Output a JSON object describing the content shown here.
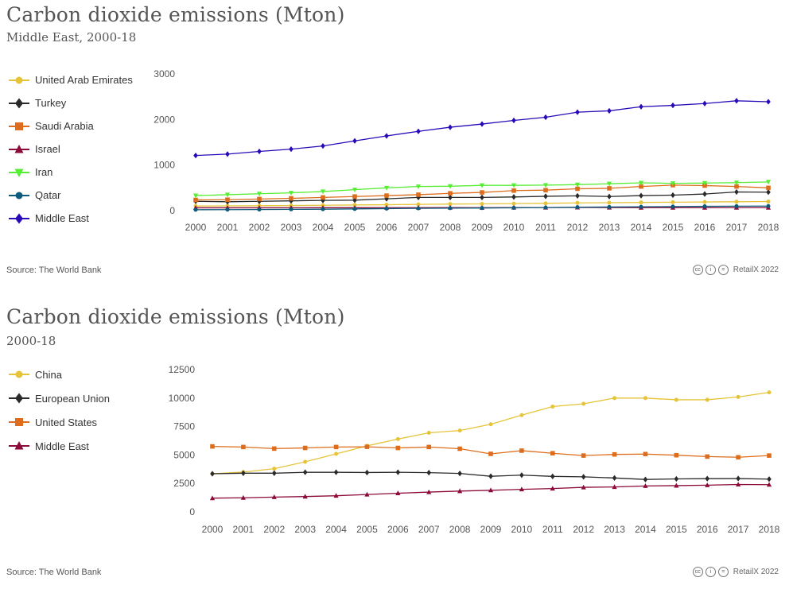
{
  "charts": [
    {
      "title": "Carbon dioxide emissions (Mton)",
      "subtitle": "Middle East, 2000-18",
      "source": "Source: The World Bank",
      "credit": "RetailX 2022",
      "credit_icons": [
        "cc-icon",
        "by-icon",
        "nd-icon"
      ],
      "legend": [
        {
          "name": "United Arab Emirates",
          "color": "#e6c43a",
          "marker": "circle"
        },
        {
          "name": "Turkey",
          "color": "#2a2a2a",
          "marker": "diamond"
        },
        {
          "name": "Saudi Arabia",
          "color": "#dd6d1c",
          "marker": "square"
        },
        {
          "name": "Israel",
          "color": "#8b0a3a",
          "marker": "triangle-up"
        },
        {
          "name": "Iran",
          "color": "#55ee33",
          "marker": "triangle-down"
        },
        {
          "name": "Qatar",
          "color": "#0e5a7a",
          "marker": "circle"
        },
        {
          "name": "Middle East",
          "color": "#2a0ab8",
          "marker": "diamond"
        }
      ]
    },
    {
      "title": "Carbon dioxide emissions (Mton)",
      "subtitle": "2000-18",
      "source": "Source: The World Bank",
      "credit": "RetailX 2022",
      "credit_icons": [
        "cc-icon",
        "by-icon",
        "nd-icon"
      ],
      "legend": [
        {
          "name": "China",
          "color": "#e6c43a",
          "marker": "circle"
        },
        {
          "name": "European Union",
          "color": "#2a2a2a",
          "marker": "diamond"
        },
        {
          "name": "United States",
          "color": "#dd6d1c",
          "marker": "square"
        },
        {
          "name": "Middle East",
          "color": "#8b0a3a",
          "marker": "triangle-up"
        }
      ]
    }
  ],
  "chart_data": [
    {
      "type": "line",
      "title": "Carbon dioxide emissions (Mton)",
      "subtitle": "Middle East, 2000-18",
      "xlabel": "",
      "ylabel": "",
      "ylim": [
        0,
        3000
      ],
      "yticks": [
        0,
        1000,
        2000,
        3000
      ],
      "x": [
        "2000",
        "2001",
        "2002",
        "2003",
        "2004",
        "2005",
        "2006",
        "2007",
        "2008",
        "2009",
        "2010",
        "2011",
        "2012",
        "2013",
        "2014",
        "2015",
        "2016",
        "2017",
        "2018"
      ],
      "series": [
        {
          "name": "United Arab Emirates",
          "color": "#e6c43a",
          "marker": "circle",
          "values": [
            100,
            105,
            108,
            112,
            118,
            125,
            130,
            138,
            145,
            148,
            155,
            160,
            170,
            175,
            180,
            185,
            190,
            195,
            200
          ]
        },
        {
          "name": "Turkey",
          "color": "#2a2a2a",
          "marker": "diamond",
          "values": [
            205,
            195,
            205,
            215,
            225,
            230,
            260,
            290,
            290,
            290,
            300,
            315,
            325,
            310,
            330,
            340,
            365,
            410,
            405
          ]
        },
        {
          "name": "Saudi Arabia",
          "color": "#dd6d1c",
          "marker": "square",
          "values": [
            235,
            240,
            255,
            270,
            290,
            310,
            330,
            350,
            380,
            400,
            440,
            450,
            480,
            490,
            530,
            560,
            550,
            530,
            500
          ]
        },
        {
          "name": "Israel",
          "color": "#8b0a3a",
          "marker": "triangle-up",
          "values": [
            62,
            62,
            62,
            63,
            64,
            64,
            65,
            66,
            67,
            64,
            67,
            68,
            70,
            68,
            65,
            65,
            66,
            66,
            65
          ]
        },
        {
          "name": "Iran",
          "color": "#55ee33",
          "marker": "triangle-down",
          "values": [
            330,
            350,
            370,
            390,
            420,
            460,
            500,
            530,
            535,
            555,
            555,
            560,
            570,
            590,
            610,
            600,
            605,
            615,
            630
          ]
        },
        {
          "name": "Qatar",
          "color": "#0e5a7a",
          "marker": "circle",
          "values": [
            20,
            22,
            24,
            28,
            32,
            38,
            45,
            50,
            55,
            58,
            62,
            68,
            75,
            80,
            85,
            90,
            95,
            98,
            100
          ]
        },
        {
          "name": "Middle East",
          "color": "#2a0ab8",
          "marker": "diamond",
          "values": [
            1210,
            1240,
            1300,
            1350,
            1420,
            1530,
            1640,
            1740,
            1830,
            1900,
            1980,
            2050,
            2160,
            2190,
            2280,
            2310,
            2350,
            2410,
            2390
          ]
        }
      ]
    },
    {
      "type": "line",
      "title": "Carbon dioxide emissions (Mton)",
      "subtitle": "2000-18",
      "xlabel": "",
      "ylabel": "",
      "ylim": [
        0,
        12500
      ],
      "yticks": [
        0,
        2500,
        5000,
        7500,
        10000,
        12500
      ],
      "x": [
        "2000",
        "2001",
        "2002",
        "2003",
        "2004",
        "2005",
        "2006",
        "2007",
        "2008",
        "2009",
        "2010",
        "2011",
        "2012",
        "2013",
        "2014",
        "2015",
        "2016",
        "2017",
        "2018"
      ],
      "series": [
        {
          "name": "China",
          "color": "#e6c43a",
          "marker": "circle",
          "values": [
            3350,
            3500,
            3800,
            4400,
            5100,
            5800,
            6400,
            6950,
            7150,
            7700,
            8500,
            9250,
            9500,
            10000,
            10000,
            9850,
            9850,
            10100,
            10500
          ]
        },
        {
          "name": "European Union",
          "color": "#2a2a2a",
          "marker": "diamond",
          "values": [
            3350,
            3400,
            3400,
            3480,
            3480,
            3460,
            3480,
            3450,
            3380,
            3130,
            3230,
            3120,
            3080,
            2980,
            2850,
            2900,
            2920,
            2930,
            2880
          ]
        },
        {
          "name": "United States",
          "color": "#dd6d1c",
          "marker": "square",
          "values": [
            5750,
            5700,
            5560,
            5620,
            5700,
            5720,
            5620,
            5700,
            5550,
            5100,
            5380,
            5150,
            4950,
            5050,
            5080,
            4980,
            4860,
            4800,
            4950
          ]
        },
        {
          "name": "Middle East",
          "color": "#8b0a3a",
          "marker": "triangle-up",
          "values": [
            1210,
            1240,
            1300,
            1350,
            1420,
            1530,
            1640,
            1740,
            1830,
            1900,
            1980,
            2050,
            2160,
            2190,
            2280,
            2310,
            2350,
            2410,
            2390
          ]
        }
      ]
    }
  ]
}
